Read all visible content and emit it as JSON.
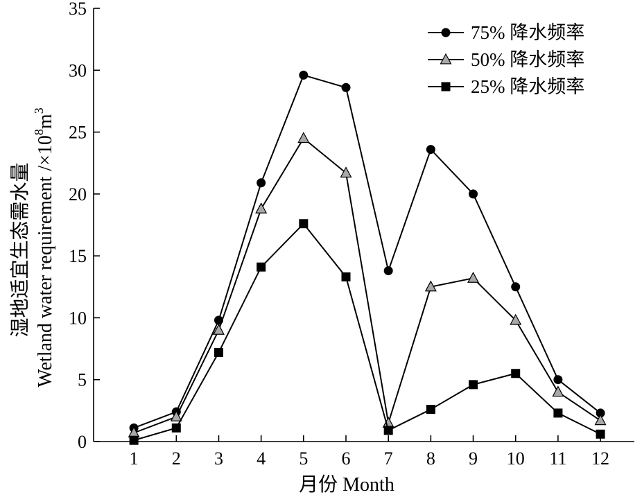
{
  "chart_data": {
    "type": "line",
    "x": [
      1,
      2,
      3,
      4,
      5,
      6,
      7,
      8,
      9,
      10,
      11,
      12
    ],
    "xlabel": "月份 Month",
    "ylabel_cn": "湿地适宜生态需水量",
    "ylabel_en": "Wetland water requirement",
    "ylabel_unit_prefix": "/×10",
    "ylabel_unit_exp": "8",
    "ylabel_unit_base": "m",
    "ylabel_unit_exp2": "3",
    "xlim": [
      0.05,
      12.8
    ],
    "ylim": [
      0,
      35
    ],
    "yticks": [
      0,
      5,
      10,
      15,
      20,
      25,
      30,
      35
    ],
    "grid": false,
    "legend_position": "top-right",
    "series": [
      {
        "name": "75% 降水频率",
        "marker": "circle",
        "values": [
          1.1,
          2.4,
          9.8,
          20.9,
          29.6,
          28.6,
          13.8,
          23.6,
          20.0,
          12.5,
          5.0,
          2.3
        ]
      },
      {
        "name": "50% 降水频率",
        "marker": "triangle",
        "values": [
          0.7,
          2.0,
          9.0,
          18.8,
          24.5,
          21.7,
          1.5,
          12.5,
          13.2,
          9.8,
          4.0,
          1.7
        ]
      },
      {
        "name": "25% 降水频率",
        "marker": "square",
        "values": [
          0.1,
          1.1,
          7.2,
          14.1,
          17.6,
          13.3,
          0.9,
          2.6,
          4.6,
          5.5,
          2.3,
          0.6
        ]
      }
    ]
  }
}
